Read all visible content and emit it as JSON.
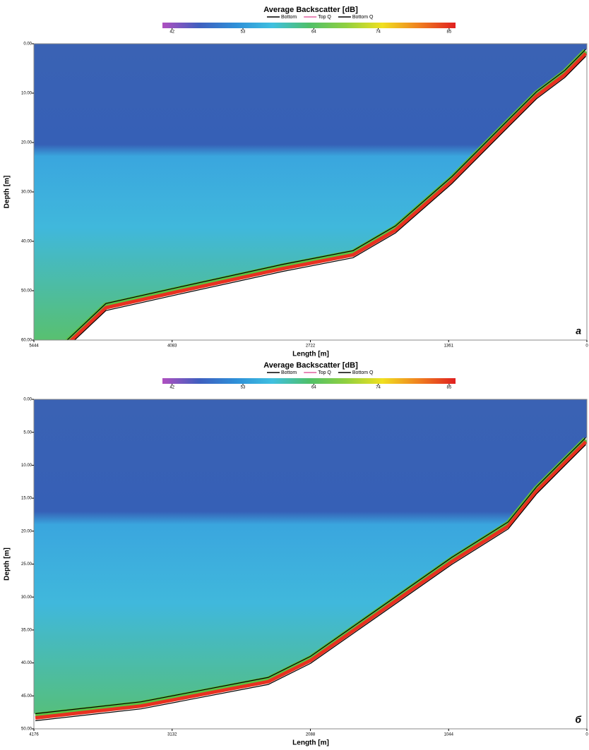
{
  "chart_data": [
    {
      "type": "echogram",
      "title": "Average Backscatter [dB]",
      "xlabel": "Length [m]",
      "ylabel": "Depth [m]",
      "panel_label": "a",
      "colorbar": {
        "clim": [
          40.5,
          86
        ],
        "ticks": [
          42,
          53,
          64,
          74,
          85
        ],
        "colors": [
          "#b04fc0",
          "#3f5fbf",
          "#2e8fd8",
          "#3fc0e0",
          "#4fc06a",
          "#8fd040",
          "#f0e020",
          "#f08020",
          "#e02020"
        ]
      },
      "series": [
        {
          "name": "Bottom",
          "color": "#000000",
          "x": [
            5117,
            4735,
            4040,
            3000,
            2302,
            1885,
            1329,
            773,
            495,
            217,
            10
          ],
          "values": [
            60,
            52.6,
            49.4,
            44.7,
            41.9,
            36.9,
            26.9,
            15.4,
            9.7,
            5.4,
            1.1
          ]
        },
        {
          "name": "Top Q",
          "color": "#e060a0"
        },
        {
          "name": "Bottom Q",
          "color": "#000000"
        }
      ],
      "xlim": [
        5444,
        0
      ],
      "xticks": [
        5444,
        4083,
        2722,
        1361,
        0
      ],
      "ylim": [
        0,
        60
      ],
      "yticks": [
        {
          "value": 0,
          "label": "0.00"
        },
        {
          "value": 10,
          "label": "10.00"
        },
        {
          "value": 20,
          "label": "20.00"
        },
        {
          "value": 30,
          "label": "30.00"
        },
        {
          "value": 40,
          "label": "40.00"
        },
        {
          "value": 50,
          "label": "50.00"
        },
        {
          "value": 60,
          "label": "60.00"
        }
      ]
    },
    {
      "type": "echogram",
      "title": "Average Backscatter [dB]",
      "xlabel": "Length [m]",
      "ylabel": "Depth [m]",
      "panel_label": "б",
      "colorbar": {
        "clim": [
          40.5,
          86
        ],
        "ticks": [
          42,
          53,
          64,
          74,
          85
        ],
        "colors": [
          "#b04fc0",
          "#3f5fbf",
          "#2e8fd8",
          "#3fc0e0",
          "#4fc06a",
          "#8fd040",
          "#f0e020",
          "#f08020",
          "#e02020"
        ]
      },
      "series": [
        {
          "name": "Bottom",
          "color": "#000000",
          "x": [
            4165,
            3366,
            2406,
            2087,
            1554,
            1021,
            594,
            381,
            168,
            8
          ],
          "values": [
            47.7,
            45.9,
            42.2,
            39,
            31.5,
            24,
            18.6,
            13.3,
            9,
            5.8
          ]
        },
        {
          "name": "Top Q",
          "color": "#e060a0"
        },
        {
          "name": "Bottom Q",
          "color": "#000000"
        }
      ],
      "xlim": [
        4176,
        0
      ],
      "xticks": [
        4176,
        3132,
        2088,
        1044,
        0
      ],
      "ylim": [
        0,
        50
      ],
      "yticks": [
        {
          "value": 0,
          "label": "0.00"
        },
        {
          "value": 5,
          "label": "5.00"
        },
        {
          "value": 10,
          "label": "10.00"
        },
        {
          "value": 15,
          "label": "15.00"
        },
        {
          "value": 20,
          "label": "20.00"
        },
        {
          "value": 25,
          "label": "25.00"
        },
        {
          "value": 30,
          "label": "30.00"
        },
        {
          "value": 35,
          "label": "35.00"
        },
        {
          "value": 40,
          "label": "40.00"
        },
        {
          "value": 45,
          "label": "45.00"
        },
        {
          "value": 50,
          "label": "50.00"
        }
      ]
    }
  ]
}
